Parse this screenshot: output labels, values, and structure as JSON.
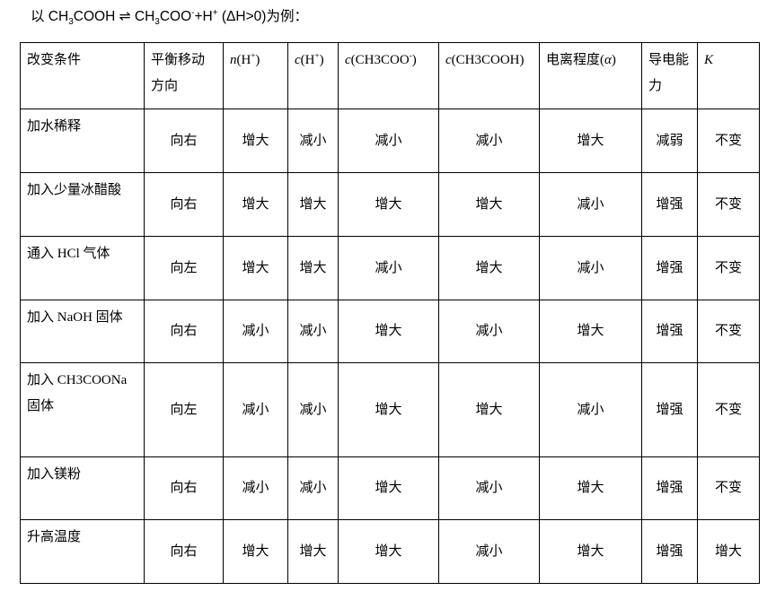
{
  "title": {
    "prefix": "以 CH",
    "sub1": "3",
    "mid1": "COOH ",
    "arrow": "⇌",
    "mid2": " CH",
    "sub2": "3",
    "mid3": "COO",
    "sup1": "-",
    "mid4": "+H",
    "sup2": "+",
    "suffix": "  (ΔH>0)为例："
  },
  "header": [
    {
      "it": "",
      "text": "改变条件",
      "sup": "",
      "post": ""
    },
    {
      "it": "",
      "text": "平衡移动方向",
      "sup": "",
      "post": ""
    },
    {
      "it": "n",
      "text": "(H",
      "sup": "+",
      "post": ")"
    },
    {
      "it": "c",
      "text": "(H",
      "sup": "+",
      "post": ")"
    },
    {
      "it": "c",
      "text": "(CH3COO",
      "sup": "-",
      "post": ")"
    },
    {
      "it": "c",
      "text": "(CH3COOH)",
      "sup": "",
      "post": ""
    },
    {
      "it": "",
      "text": "电离程度(",
      "sup": "",
      "post": ")",
      "it2": "α"
    },
    {
      "it": "",
      "text": "导电能力",
      "sup": "",
      "post": ""
    },
    {
      "it": "K",
      "text": "",
      "sup": "",
      "post": ""
    }
  ],
  "rows": [
    [
      "加水稀释",
      "向右",
      "增大",
      "减小",
      "减小",
      "减小",
      "增大",
      "减弱",
      "不变"
    ],
    [
      "加入少量冰醋酸",
      "向右",
      "增大",
      "增大",
      "增大",
      "增大",
      "减小",
      "增强",
      "不变"
    ],
    [
      "通入 HCl 气体",
      "向左",
      "增大",
      "增大",
      "减小",
      "增大",
      "减小",
      "增强",
      "不变"
    ],
    [
      "加入 NaOH 固体",
      "向右",
      "减小",
      "减小",
      "增大",
      "减小",
      "增大",
      "增强",
      "不变"
    ],
    [
      "加入 CH3COONa 固体",
      "向左",
      "减小",
      "减小",
      "增大",
      "增大",
      "减小",
      "增强",
      "不变"
    ],
    [
      "加入镁粉",
      "向右",
      "减小",
      "减小",
      "增大",
      "减小",
      "增大",
      "增强",
      "不变"
    ],
    [
      "升高温度",
      "向右",
      "增大",
      "增大",
      "增大",
      "减小",
      "增大",
      "增强",
      "增大"
    ]
  ]
}
